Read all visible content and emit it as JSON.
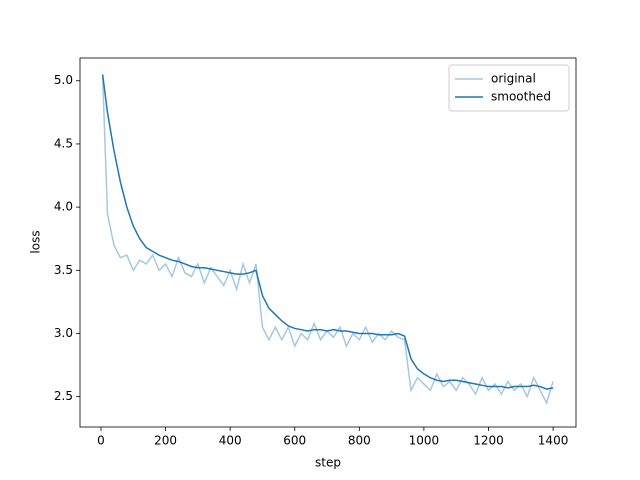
{
  "chart_data": {
    "type": "line",
    "xlabel": "step",
    "ylabel": "loss",
    "x": [
      5,
      20,
      40,
      60,
      80,
      100,
      120,
      140,
      160,
      180,
      200,
      220,
      240,
      260,
      280,
      300,
      320,
      340,
      360,
      380,
      400,
      420,
      440,
      460,
      480,
      500,
      520,
      540,
      560,
      580,
      600,
      620,
      640,
      660,
      680,
      700,
      720,
      740,
      760,
      780,
      800,
      820,
      840,
      860,
      880,
      900,
      920,
      940,
      960,
      980,
      1000,
      1020,
      1040,
      1060,
      1080,
      1100,
      1120,
      1140,
      1160,
      1180,
      1200,
      1220,
      1240,
      1260,
      1280,
      1300,
      1320,
      1340,
      1360,
      1380,
      1400
    ],
    "series": [
      {
        "name": "original",
        "color": "#a6c8e1",
        "values": [
          5.05,
          3.95,
          3.7,
          3.6,
          3.62,
          3.5,
          3.58,
          3.55,
          3.62,
          3.5,
          3.55,
          3.45,
          3.6,
          3.48,
          3.45,
          3.55,
          3.4,
          3.52,
          3.45,
          3.38,
          3.5,
          3.35,
          3.55,
          3.4,
          3.55,
          3.05,
          2.95,
          3.05,
          2.95,
          3.05,
          2.9,
          3.0,
          2.95,
          3.08,
          2.95,
          3.02,
          2.97,
          3.05,
          2.9,
          3.0,
          2.95,
          3.05,
          2.93,
          3.0,
          2.95,
          3.02,
          2.97,
          2.95,
          2.55,
          2.65,
          2.6,
          2.55,
          2.68,
          2.58,
          2.62,
          2.55,
          2.65,
          2.6,
          2.52,
          2.65,
          2.55,
          2.6,
          2.52,
          2.62,
          2.55,
          2.6,
          2.5,
          2.65,
          2.55,
          2.45,
          2.62
        ]
      },
      {
        "name": "smoothed",
        "color": "#1f77b4",
        "values": [
          5.05,
          4.75,
          4.45,
          4.2,
          4.0,
          3.85,
          3.75,
          3.68,
          3.65,
          3.62,
          3.6,
          3.58,
          3.57,
          3.55,
          3.53,
          3.52,
          3.52,
          3.51,
          3.5,
          3.49,
          3.48,
          3.47,
          3.47,
          3.48,
          3.5,
          3.3,
          3.2,
          3.15,
          3.1,
          3.06,
          3.04,
          3.03,
          3.02,
          3.03,
          3.03,
          3.02,
          3.03,
          3.02,
          3.02,
          3.01,
          3.0,
          3.0,
          3.0,
          2.99,
          2.99,
          2.99,
          3.0,
          2.98,
          2.8,
          2.72,
          2.68,
          2.65,
          2.63,
          2.62,
          2.63,
          2.63,
          2.62,
          2.61,
          2.6,
          2.59,
          2.58,
          2.58,
          2.58,
          2.57,
          2.58,
          2.58,
          2.58,
          2.59,
          2.58,
          2.56,
          2.57
        ]
      }
    ],
    "xlim": [
      -65,
      1471
    ],
    "ylim": [
      2.26,
      5.18
    ],
    "xticks": [
      0,
      200,
      400,
      600,
      800,
      1000,
      1200,
      1400
    ],
    "yticks": [
      2.5,
      {
        "value": 3,
        "label": "3.0"
      },
      3.5,
      {
        "value": 4,
        "label": "4.0"
      },
      4.5,
      {
        "value": 5,
        "label": "5.0"
      }
    ],
    "legend": "upper right"
  }
}
